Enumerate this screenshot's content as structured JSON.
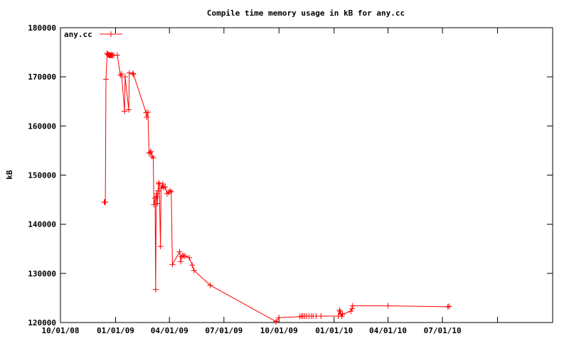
{
  "chart_data": {
    "type": "line",
    "title": "Compile time memory usage in kB for any.cc",
    "xlabel": "",
    "ylabel": "kB",
    "x_type": "date",
    "xlim": [
      "2008-10-01",
      "2011-01-01"
    ],
    "ylim": [
      120000,
      180000
    ],
    "x_ticks": [
      {
        "value": "2008-10-01",
        "label": "10/01/08"
      },
      {
        "value": "2009-01-01",
        "label": "01/01/09"
      },
      {
        "value": "2009-04-01",
        "label": "04/01/09"
      },
      {
        "value": "2009-07-01",
        "label": "07/01/09"
      },
      {
        "value": "2009-10-01",
        "label": "10/01/09"
      },
      {
        "value": "2010-01-01",
        "label": "01/01/10"
      },
      {
        "value": "2010-04-01",
        "label": "04/01/10"
      },
      {
        "value": "2010-07-01",
        "label": "07/01/10"
      }
    ],
    "y_ticks": [
      120000,
      130000,
      140000,
      150000,
      160000,
      170000,
      180000
    ],
    "grid": false,
    "legend_position": "top-left",
    "series": [
      {
        "name": "any.cc",
        "color": "#ff0000",
        "marker": "plus",
        "points": [
          [
            "2008-12-13",
            144500
          ],
          [
            "2008-12-14",
            144500
          ],
          [
            "2008-12-15",
            144500
          ],
          [
            "2008-12-16",
            169500
          ],
          [
            "2008-12-18",
            174800
          ],
          [
            "2008-12-19",
            174600
          ],
          [
            "2008-12-20",
            174500
          ],
          [
            "2008-12-21",
            174400
          ],
          [
            "2008-12-22",
            174400
          ],
          [
            "2008-12-23",
            174400
          ],
          [
            "2008-12-24",
            174400
          ],
          [
            "2008-12-25",
            174400
          ],
          [
            "2008-12-26",
            174400
          ],
          [
            "2008-12-27",
            174400
          ],
          [
            "2008-12-29",
            174400
          ],
          [
            "2009-01-04",
            174400
          ],
          [
            "2009-01-09",
            170300
          ],
          [
            "2009-01-11",
            170600
          ],
          [
            "2009-01-16",
            163000
          ],
          [
            "2009-01-17",
            170000
          ],
          [
            "2009-01-23",
            163300
          ],
          [
            "2009-01-24",
            170800
          ],
          [
            "2009-01-30",
            170700
          ],
          [
            "2009-01-31",
            170500
          ],
          [
            "2009-02-21",
            162700
          ],
          [
            "2009-02-22",
            161800
          ],
          [
            "2009-02-24",
            162800
          ],
          [
            "2009-02-26",
            154500
          ],
          [
            "2009-02-28",
            154600
          ],
          [
            "2009-03-01",
            154800
          ],
          [
            "2009-03-03",
            153800
          ],
          [
            "2009-03-05",
            153500
          ],
          [
            "2009-03-06",
            144000
          ],
          [
            "2009-03-08",
            145300
          ],
          [
            "2009-03-09",
            126700
          ],
          [
            "2009-03-10",
            145600
          ],
          [
            "2009-03-11",
            146200
          ],
          [
            "2009-03-12",
            144200
          ],
          [
            "2009-03-13",
            146800
          ],
          [
            "2009-03-14",
            148400
          ],
          [
            "2009-03-15",
            148200
          ],
          [
            "2009-03-17",
            135500
          ],
          [
            "2009-03-18",
            147300
          ],
          [
            "2009-03-20",
            147800
          ],
          [
            "2009-03-21",
            148200
          ],
          [
            "2009-03-22",
            147400
          ],
          [
            "2009-03-25",
            147600
          ],
          [
            "2009-03-28",
            146200
          ],
          [
            "2009-03-31",
            146500
          ],
          [
            "2009-04-02",
            146800
          ],
          [
            "2009-04-04",
            146600
          ],
          [
            "2009-04-06",
            131800
          ],
          [
            "2009-04-18",
            134400
          ],
          [
            "2009-04-20",
            132400
          ],
          [
            "2009-04-21",
            133400
          ],
          [
            "2009-04-23",
            133600
          ],
          [
            "2009-04-25",
            133600
          ],
          [
            "2009-04-27",
            133500
          ],
          [
            "2009-05-04",
            133200
          ],
          [
            "2009-05-09",
            131700
          ],
          [
            "2009-05-12",
            130600
          ],
          [
            "2009-06-08",
            127600
          ],
          [
            "2009-09-26",
            120200
          ],
          [
            "2009-10-01",
            121000
          ],
          [
            "2009-11-05",
            121200
          ],
          [
            "2009-11-08",
            121300
          ],
          [
            "2009-11-10",
            121300
          ],
          [
            "2009-11-13",
            121300
          ],
          [
            "2009-11-16",
            121300
          ],
          [
            "2009-11-20",
            121300
          ],
          [
            "2009-11-24",
            121300
          ],
          [
            "2009-11-27",
            121300
          ],
          [
            "2009-12-02",
            121300
          ],
          [
            "2009-12-10",
            121300
          ],
          [
            "2010-01-08",
            121300
          ],
          [
            "2010-01-10",
            122500
          ],
          [
            "2010-01-11",
            122200
          ],
          [
            "2010-01-12",
            121800
          ],
          [
            "2010-01-14",
            121300
          ],
          [
            "2010-01-15",
            121700
          ],
          [
            "2010-01-29",
            122300
          ],
          [
            "2010-01-31",
            122800
          ],
          [
            "2010-02-01",
            123400
          ],
          [
            "2010-04-01",
            123400
          ],
          [
            "2010-07-10",
            123200
          ],
          [
            "2010-07-12",
            123300
          ]
        ]
      }
    ]
  }
}
